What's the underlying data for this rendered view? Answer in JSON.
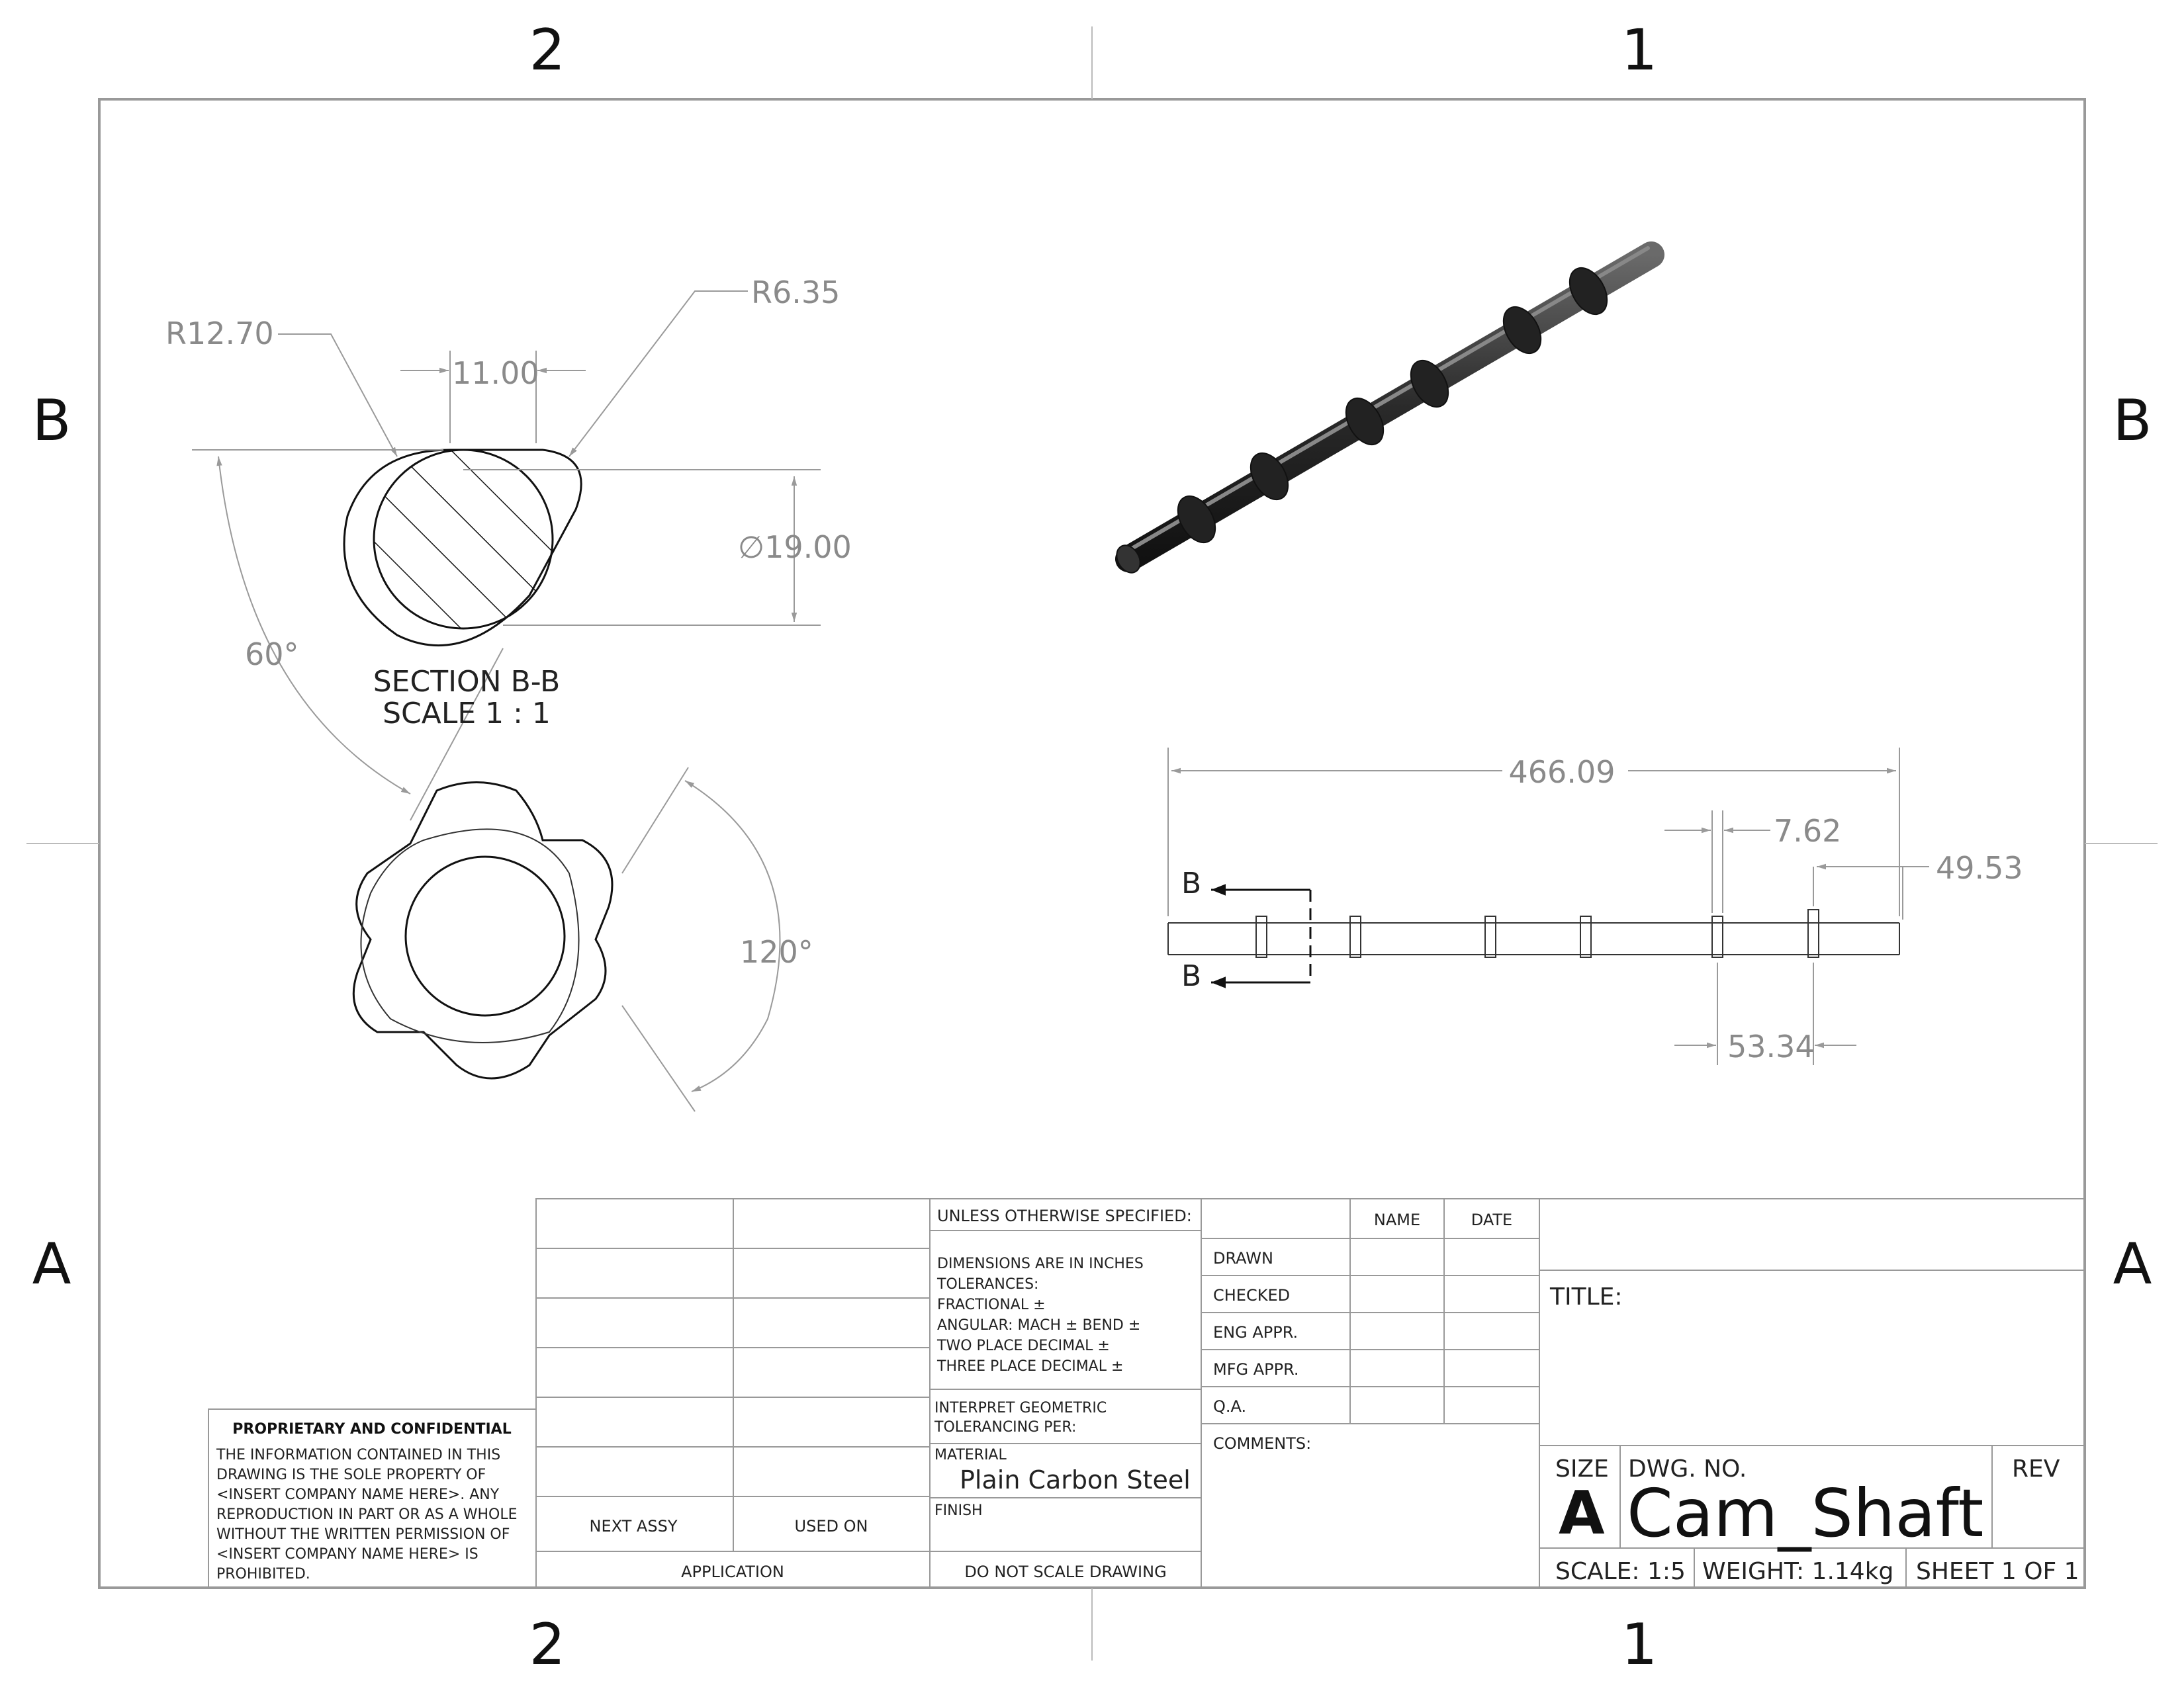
{
  "zones": {
    "top": [
      "2",
      "1"
    ],
    "side": [
      "B",
      "A"
    ]
  },
  "section_view": {
    "dim_outer_radius": "R12.70",
    "dim_corner_radius": "R6.35",
    "dim_offset": "11.00",
    "dim_diameter": "∅19.00",
    "dim_angle": "60°",
    "title": "SECTION B-B",
    "scale": "SCALE 1 : 1"
  },
  "end_view": {
    "dim_angle": "120°"
  },
  "side_view": {
    "dim_length": "466.09",
    "dim_lobe_width": "7.62",
    "dim_end_offset": "49.53",
    "dim_spacing": "53.34",
    "section_label_top": "B",
    "section_label_bottom": "B"
  },
  "title_block": {
    "proprietary_title": "PROPRIETARY AND CONFIDENTIAL",
    "proprietary_lines": [
      "THE INFORMATION CONTAINED IN THIS",
      "DRAWING IS THE SOLE PROPERTY OF",
      "<INSERT COMPANY NAME HERE>.  ANY",
      "REPRODUCTION IN PART OR AS A WHOLE",
      "WITHOUT THE WRITTEN PERMISSION OF",
      "<INSERT COMPANY NAME HERE> IS",
      "PROHIBITED."
    ],
    "next_assy": "NEXT ASSY",
    "used_on": "USED ON",
    "application": "APPLICATION",
    "unless_specified": "UNLESS OTHERWISE SPECIFIED:",
    "tolerance_lines": [
      "DIMENSIONS ARE IN INCHES",
      "TOLERANCES:",
      "FRACTIONAL ±",
      "ANGULAR: MACH ±     BEND  ±",
      "TWO PLACE DECIMAL     ±",
      "THREE PLACE DECIMAL   ±"
    ],
    "interpret_lines": [
      "INTERPRET GEOMETRIC",
      "TOLERANCING PER:"
    ],
    "material_label": "MATERIAL",
    "material_value": "Plain Carbon Steel",
    "finish_label": "FINISH",
    "do_not_scale": "DO NOT SCALE DRAWING",
    "name_header": "NAME",
    "date_header": "DATE",
    "approvals": [
      "DRAWN",
      "CHECKED",
      "ENG APPR.",
      "MFG APPR.",
      "Q.A."
    ],
    "comments": "COMMENTS:",
    "title_label": "TITLE:",
    "size_label": "SIZE",
    "size_value": "A",
    "dwg_no_label": "DWG.  NO.",
    "dwg_no_value": "Cam_Shaft",
    "rev_label": "REV",
    "scale": "SCALE: 1:5",
    "weight": "WEIGHT:  1.14kg",
    "sheet": "SHEET 1 OF 1"
  }
}
